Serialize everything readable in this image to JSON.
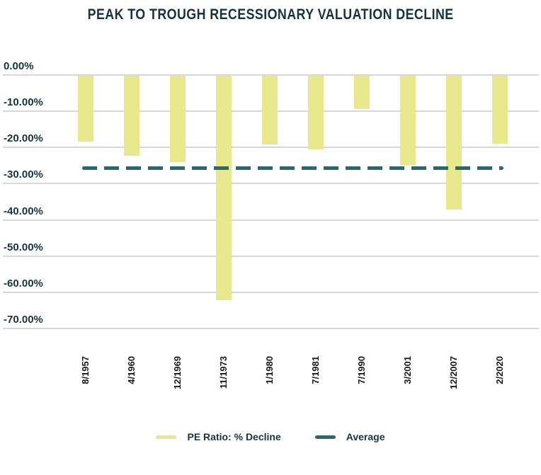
{
  "title": "PEAK TO TROUGH RECESSIONARY VALUATION DECLINE",
  "chart_data": {
    "type": "bar",
    "title": "PEAK TO TROUGH RECESSIONARY VALUATION DECLINE",
    "categories": [
      "8/1957",
      "4/1960",
      "12/1969",
      "11/1973",
      "1/1980",
      "7/1981",
      "7/1990",
      "3/2001",
      "12/2007",
      "2/2020"
    ],
    "series": [
      {
        "name": "PE Ratio: % Decline",
        "type": "bar",
        "color": "#e8e98c",
        "values": [
          -18.4,
          -22.3,
          -24.1,
          -62.3,
          -19.2,
          -20.5,
          -9.4,
          -24.9,
          -37.2,
          -19.0
        ]
      },
      {
        "name": "Average",
        "type": "dashed-line",
        "color": "#226b70",
        "value": -25.7
      }
    ],
    "ylabel": "",
    "xlabel": "",
    "ylim": [
      -70,
      0
    ],
    "ytick_labels": [
      "0.00%",
      "-10.00%",
      "-20.00%",
      "-30.00%",
      "-40.00%",
      "-50.00%",
      "-60.00%",
      "-70.00%"
    ],
    "ytick_values": [
      0,
      -10,
      -20,
      -30,
      -40,
      -50,
      -60,
      -70
    ],
    "grid": true,
    "legend_position": "bottom",
    "colors": {
      "background": "#ffffff",
      "bar_fill": "#e8e98c",
      "average_line": "#226b70",
      "title_text": "#14353f",
      "ytick_text": "#14353f",
      "xtick_text": "#1a1a1a",
      "gridline": "#d5d8da"
    }
  }
}
